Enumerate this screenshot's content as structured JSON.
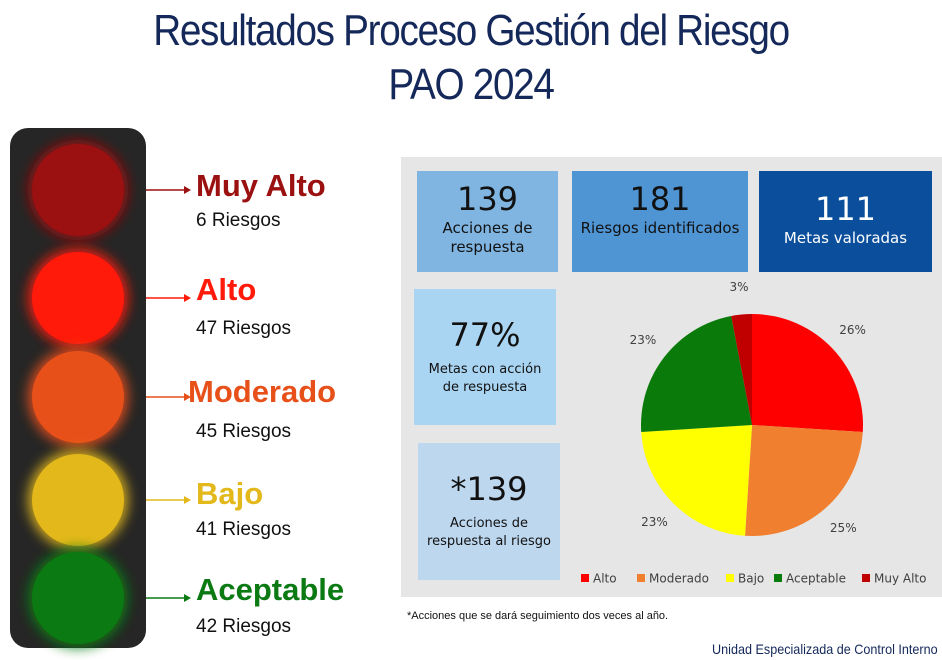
{
  "header": {
    "title": "Resultados Proceso Gestión del Riesgo",
    "subtitle": "PAO 2024"
  },
  "levels": [
    {
      "name": "Muy Alto",
      "count": "6 Riesgos",
      "color": "#9b1010"
    },
    {
      "name": "Alto",
      "count": "47 Riesgos",
      "color": "#ff1a0a"
    },
    {
      "name": "Moderado",
      "count": "45 Riesgos",
      "color": "#e8501a"
    },
    {
      "name": "Bajo",
      "count": "41 Riesgos",
      "color": "#e3b81a"
    },
    {
      "name": "Aceptable",
      "count": "42 Riesgos",
      "color": "#0b7a12"
    }
  ],
  "cards": [
    {
      "value": "139",
      "label": "Acciones de respuesta"
    },
    {
      "value": "181",
      "label": "Riesgos identificados"
    },
    {
      "value": "111",
      "label": "Metas valoradas"
    },
    {
      "value": "77%",
      "label": "Metas con acción de respuesta"
    },
    {
      "value": "*139",
      "label": "Acciones de respuesta al riesgo"
    }
  ],
  "chart_data": {
    "type": "pie",
    "categories": [
      "Alto",
      "Moderado",
      "Bajo",
      "Aceptable",
      "Muy Alto"
    ],
    "values": [
      26,
      25,
      23,
      23,
      3
    ],
    "value_labels": [
      "26%",
      "25%",
      "23%",
      "23%",
      "3%"
    ],
    "colors": [
      "#ff0000",
      "#f08030",
      "#ffff00",
      "#0a7a0a",
      "#c00000"
    ]
  },
  "footnote": "*Acciones que se dará seguimiento dos veces al año.",
  "footer": "Unidad Especializada de Control Interno"
}
